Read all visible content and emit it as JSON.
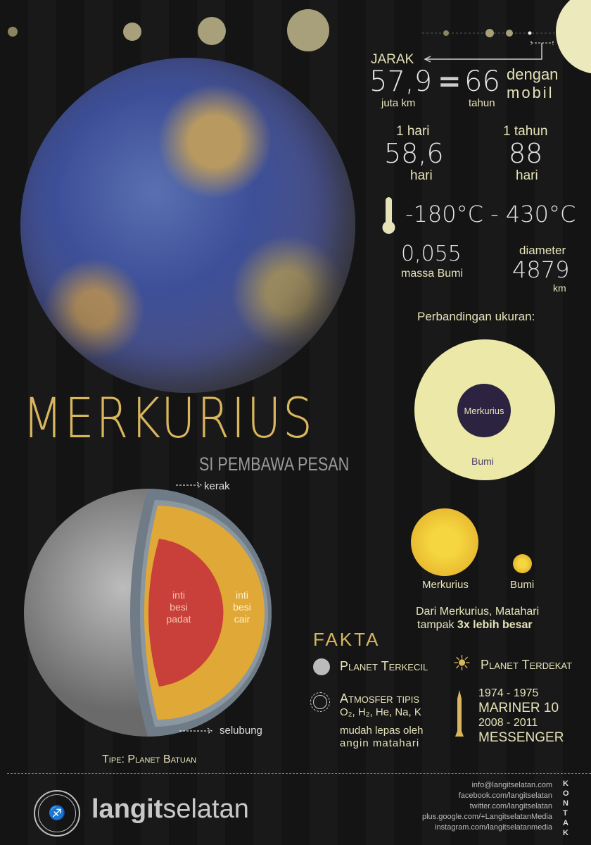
{
  "colors": {
    "background": "#151515",
    "cream": "#e6e3b8",
    "gold": "#d9b65e",
    "earth_circle": "#ece9a8",
    "mercury_circle": "#2c2340",
    "sun": "#e8b830"
  },
  "title": "MERKURIUS",
  "subtitle": "SI PEMBAWA PESAN",
  "distance": {
    "label": "JARAK",
    "value": "57,9",
    "unit": "juta km",
    "equals": "=",
    "car_value": "66",
    "car_unit": "tahun",
    "car_label_1": "dengan",
    "car_label_2": "mobil"
  },
  "day": {
    "label": "1 hari",
    "value": "58,6",
    "unit": "hari"
  },
  "year": {
    "label": "1 tahun",
    "value": "88",
    "unit": "hari"
  },
  "temperature": {
    "icon": "thermometer-icon",
    "value": "-180°C - 430°C"
  },
  "mass": {
    "value": "0,055",
    "unit": "massa Bumi"
  },
  "diameter": {
    "label": "diameter",
    "value": "4879",
    "unit": "km"
  },
  "size_comparison": {
    "title": "Perbandingan ukuran:",
    "inner": "Merkurius",
    "outer": "Bumi"
  },
  "sun_comparison": {
    "left": "Merkurius",
    "right": "Bumi",
    "caption_1": "Dari Merkurius, Matahari",
    "caption_2_prefix": "tampak ",
    "caption_2_bold": "3x lebih besar"
  },
  "structure": {
    "crust": "kerak",
    "inner_core": [
      "inti",
      "besi",
      "padat"
    ],
    "outer_core": [
      "inti",
      "besi",
      "cair"
    ],
    "mantle": "selubung",
    "type": "Tipe: Planet Batuan"
  },
  "facts": {
    "title": "FAKTA",
    "smallest": "Planet Terkecil",
    "closest": "Planet Terdekat",
    "atmosphere": "Atmosfer tipis",
    "gases": "O₂, H₂, He, Na, K",
    "atmo_note_1": "mudah lepas oleh",
    "atmo_note_2": "angin matahari",
    "missions": [
      {
        "years": "1974 - 1975",
        "name": "MARINER 10"
      },
      {
        "years": "2008 - 2011",
        "name": "MESSENGER"
      }
    ]
  },
  "footer": {
    "brand_bold": "langit",
    "brand_light": "selatan",
    "logo_text": "LANGITSELATAN ASTRO 101",
    "contact_label": "KONTAK",
    "contacts": [
      "info@langitselatan.com",
      "facebook.com/langitselatan",
      "twitter.com/langitselatan",
      "plus.google.com/+LangitselatanMedia",
      "instagram.com/langitselatanmedia"
    ]
  }
}
